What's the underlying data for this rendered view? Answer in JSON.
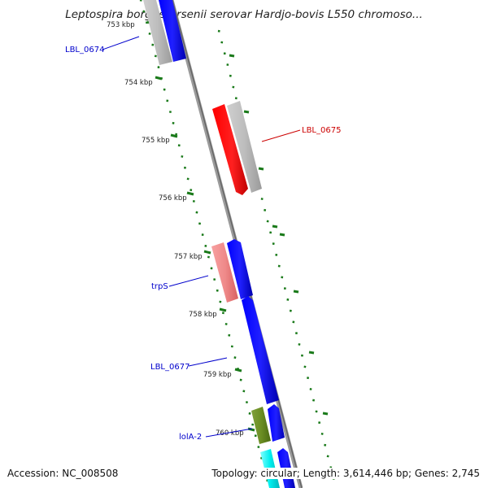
{
  "header": {
    "title": "Leptospira borgpetersenii serovar Hardjo-bovis L550 chromoso..."
  },
  "footer": {
    "accession": "Accession: NC_008508",
    "stats": "Topology: circular; Length: 3,614,446 bp; Genes: 2,745"
  },
  "map": {
    "ticks": [
      "753 kbp",
      "754 kbp",
      "755 kbp",
      "756 kbp",
      "757 kbp",
      "758 kbp",
      "759 kbp",
      "760 kbp"
    ],
    "gene_labels": [
      {
        "text": "LBL_0674",
        "color": "#0000cc"
      },
      {
        "text": "LBL_0675",
        "color": "#cc0000"
      },
      {
        "text": "trpS",
        "color": "#0000cc"
      },
      {
        "text": "LBL_0677",
        "color": "#0000cc"
      },
      {
        "text": "lolA-2",
        "color": "#0000cc"
      }
    ],
    "colors": {
      "backbone": "#888888",
      "tick": "#1a7a1a",
      "forward_gene": "#0000ee",
      "selected_gene": "#ff0000",
      "highlight_gene": "#ee8888",
      "green_gene": "#6b8e23",
      "cyan_gene": "#00e5ee",
      "gray_gene": "#bbbbbb"
    }
  }
}
